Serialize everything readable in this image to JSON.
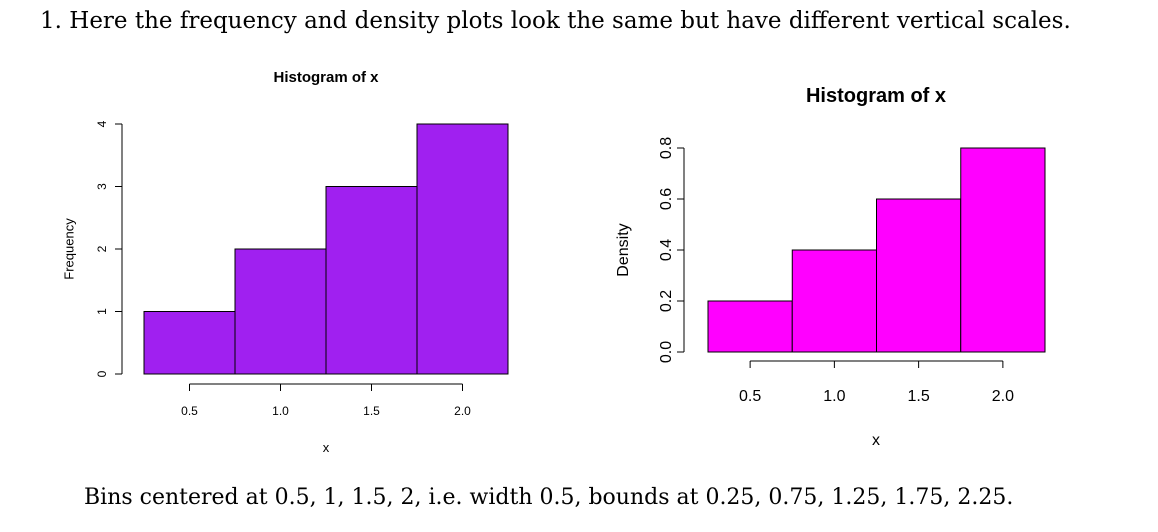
{
  "intro_text": "1. Here the frequency and density plots look the same but have different vertical scales.",
  "caption_text": "Bins centered at 0.5, 1, 1.5, 2, i.e. width 0.5, bounds at 0.25, 0.75, 1.25, 1.75, 2.25.",
  "chart_data": [
    {
      "type": "bar",
      "title": "Histogram of x",
      "xlabel": "x",
      "ylabel": "Frequency",
      "bins": [
        [
          0.25,
          0.75
        ],
        [
          0.75,
          1.25
        ],
        [
          1.25,
          1.75
        ],
        [
          1.75,
          2.25
        ]
      ],
      "values": [
        1,
        2,
        3,
        4
      ],
      "xticks": [
        "0.5",
        "1.0",
        "1.5",
        "2.0"
      ],
      "yticks": [
        "0",
        "1",
        "2",
        "3",
        "4"
      ],
      "ylim": [
        0,
        4
      ],
      "color": "#A020F0",
      "grid": false
    },
    {
      "type": "bar",
      "title": "Histogram of x",
      "xlabel": "x",
      "ylabel": "Density",
      "bins": [
        [
          0.25,
          0.75
        ],
        [
          0.75,
          1.25
        ],
        [
          1.25,
          1.75
        ],
        [
          1.75,
          2.25
        ]
      ],
      "values": [
        0.2,
        0.4,
        0.6,
        0.8
      ],
      "xticks": [
        "0.5",
        "1.0",
        "1.5",
        "2.0"
      ],
      "yticks": [
        "0.0",
        "0.2",
        "0.4",
        "0.6",
        "0.8"
      ],
      "ylim": [
        0,
        0.8
      ],
      "color": "#FF00FF",
      "grid": false
    }
  ]
}
